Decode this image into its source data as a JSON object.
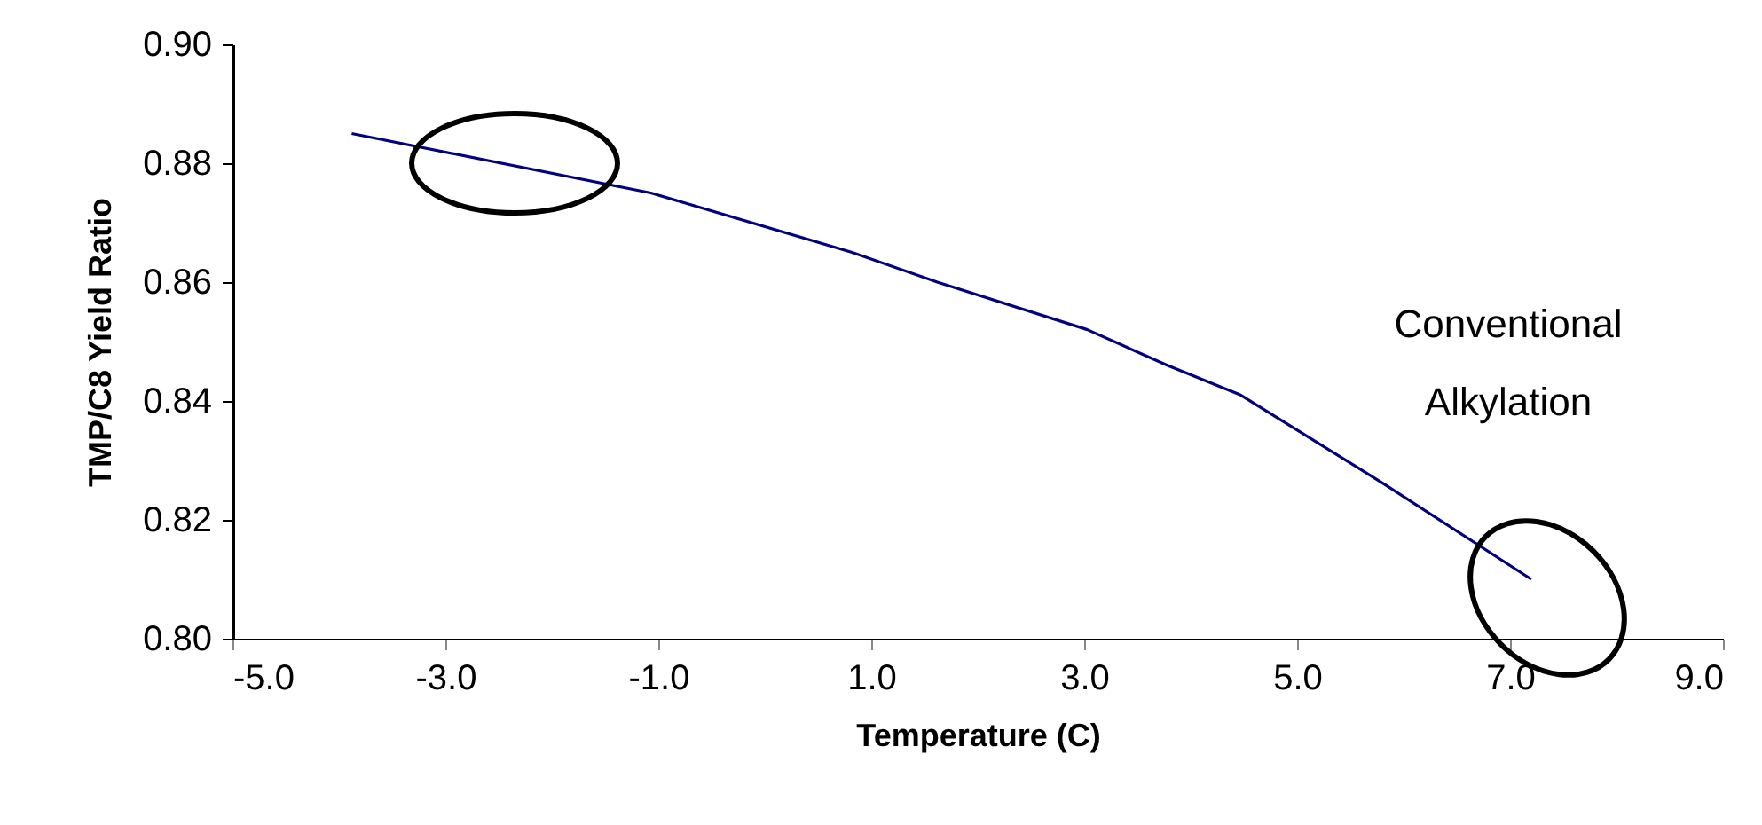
{
  "chart_data": {
    "type": "line",
    "xlabel": "Temperature (C)",
    "ylabel": "TMP/C8 Yield Ratio",
    "x": [
      -3.88,
      -1.07,
      0.82,
      1.62,
      3.03,
      3.78,
      4.47,
      5.82,
      7.2
    ],
    "series": [
      {
        "color": "#000080",
        "values": [
          0.885,
          0.875,
          0.865,
          0.86,
          0.852,
          0.846,
          0.841,
          0.826,
          0.81
        ]
      }
    ],
    "xlim": [
      -5,
      9
    ],
    "xticks": [
      {
        "value": -5,
        "label": "-5.0"
      },
      {
        "value": -3,
        "label": "-3.0"
      },
      {
        "value": -1,
        "label": "-1.0"
      },
      {
        "value": 1,
        "label": "1.0"
      },
      {
        "value": 3,
        "label": "3.0"
      },
      {
        "value": 5,
        "label": "5.0"
      },
      {
        "value": 7,
        "label": "7.0"
      },
      {
        "value": 9,
        "label": "9.0"
      }
    ],
    "ylim": [
      0.8,
      0.9
    ],
    "yticks": [
      {
        "value": 0.8,
        "label": "0.80"
      },
      {
        "value": 0.82,
        "label": "0.82"
      },
      {
        "value": 0.84,
        "label": "0.84"
      },
      {
        "value": 0.86,
        "label": "0.86"
      },
      {
        "value": 0.88,
        "label": "0.88"
      },
      {
        "value": 0.9,
        "label": "0.90"
      }
    ],
    "annotations": [
      "Conventional Alkylation"
    ],
    "grid": false,
    "marker": "none",
    "line_style": "solid"
  }
}
